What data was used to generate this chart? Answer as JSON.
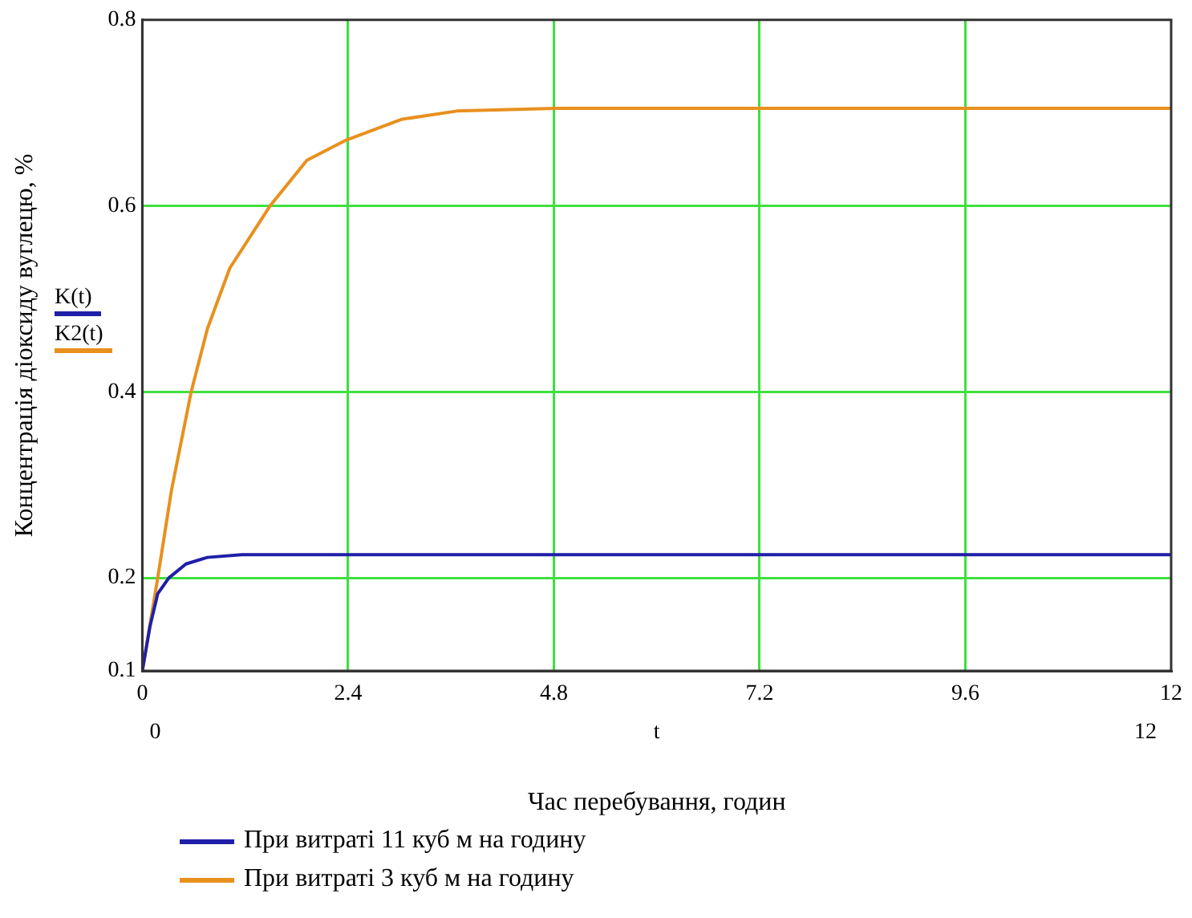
{
  "chart_data": {
    "type": "line",
    "ylabel": "Концентрація діоксиду вуглецю, %",
    "xlabel": "Час перебування, годин",
    "xlim": [
      0,
      12
    ],
    "xticks": [
      0,
      2.4,
      4.8,
      7.2,
      9.6,
      12
    ],
    "ylim": [
      0.1,
      0.8
    ],
    "yticks": [
      0.1,
      0.2,
      0.4,
      0.6,
      0.8
    ],
    "grid": true,
    "legend": "bottom",
    "marker": "none",
    "line_style": "solid",
    "series": [
      {
        "name": "При витраті 11 куб м на годину",
        "color": "#1f1fa8",
        "x": [
          0,
          0.09,
          0.18,
          0.31,
          0.51,
          0.76,
          1.16,
          2.4,
          4.8,
          7.2,
          9.6,
          12
        ],
        "values": [
          0.1,
          0.148,
          0.183,
          0.2,
          0.215,
          0.222,
          0.225,
          0.225,
          0.225,
          0.225,
          0.225,
          0.225
        ]
      },
      {
        "name": "При витраті 3 куб м на годину",
        "color": "#e8901e",
        "x": [
          0,
          0.18,
          0.34,
          0.57,
          0.76,
          1.02,
          1.49,
          1.92,
          2.36,
          3.02,
          3.67,
          4.83,
          7.2,
          9.6,
          12
        ],
        "values": [
          0.1,
          0.2,
          0.294,
          0.4,
          0.468,
          0.533,
          0.6,
          0.649,
          0.67,
          0.693,
          0.702,
          0.705,
          0.705,
          0.705,
          0.705
        ]
      }
    ],
    "annotations": [
      "K(t)",
      "K2(t)",
      "0",
      "t",
      "12"
    ]
  }
}
